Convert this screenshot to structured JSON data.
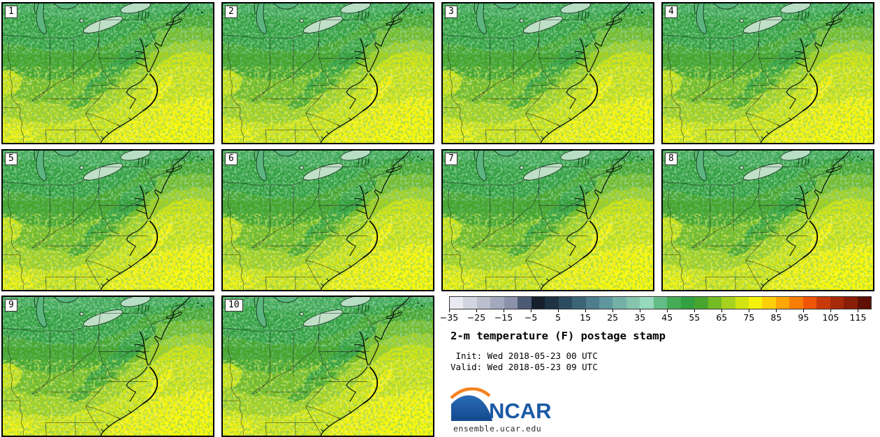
{
  "figure": {
    "title": "2-m temperature (F) postage stamp",
    "init_line": " Init: Wed 2018-05-23 00 UTC",
    "valid_line": "Valid: Wed 2018-05-23 09 UTC",
    "site": "ensemble.ucar.edu",
    "logo_text": "NCAR"
  },
  "panels": [
    {
      "label": "1"
    },
    {
      "label": "2"
    },
    {
      "label": "3"
    },
    {
      "label": "4"
    },
    {
      "label": "5"
    },
    {
      "label": "6"
    },
    {
      "label": "7"
    },
    {
      "label": "8"
    },
    {
      "label": "9"
    },
    {
      "label": "10"
    }
  ],
  "colorbar": {
    "units": "F",
    "min": -35,
    "max": 120,
    "interval": 5,
    "outline_color": "#333333",
    "tick_values": [
      -35,
      -25,
      -15,
      -5,
      5,
      15,
      25,
      35,
      45,
      55,
      65,
      75,
      85,
      95,
      105,
      115
    ],
    "tick_labels": [
      "−35",
      "−25",
      "−15",
      "−5",
      "5",
      "15",
      "25",
      "35",
      "45",
      "55",
      "65",
      "75",
      "85",
      "95",
      "105",
      "115"
    ],
    "segment_colors": [
      "#e8e9f1",
      "#d2d5e0",
      "#bbbfce",
      "#a3a9bc",
      "#8b92a9",
      "#4d5a74",
      "#16202c",
      "#1e3344",
      "#2b4b60",
      "#3c6477",
      "#4e7d8b",
      "#60979e",
      "#73b1a8",
      "#85c5ae",
      "#97d9bd",
      "#64bd86",
      "#46ab57",
      "#33a041",
      "#47a52f",
      "#74bb26",
      "#a6d11f",
      "#d2e413",
      "#f5f20b",
      "#fed00a",
      "#fda606",
      "#f87d05",
      "#ee5507",
      "#c93a0a",
      "#a72a08",
      "#8a1d06",
      "#5e1004"
    ]
  },
  "map_palette": {
    "t40_45_mint": "#4bb06b",
    "t45_50": "#43a85a",
    "t50_55": "#339f41",
    "t55_60": "#47a52f",
    "t60_65": "#74bb26",
    "t65_70": "#a6d120",
    "t70_75": "#d2e414",
    "t75_80": "#f5f20a",
    "gulf_stream_bright": "#fbf702",
    "warm_blob_bottom_left": "#ecef10",
    "warm_blob_left": "#cde217",
    "lake_michigan_fill": "#5cb57f",
    "lake_erie_fill": "#bfdfc6",
    "lake_ontario_fill": "#b7dec4",
    "border_color": "#1c1c1c",
    "coast_color": "#000000"
  },
  "logo_colors": {
    "blue": "#1b5aa5",
    "orange": "#f58220"
  }
}
